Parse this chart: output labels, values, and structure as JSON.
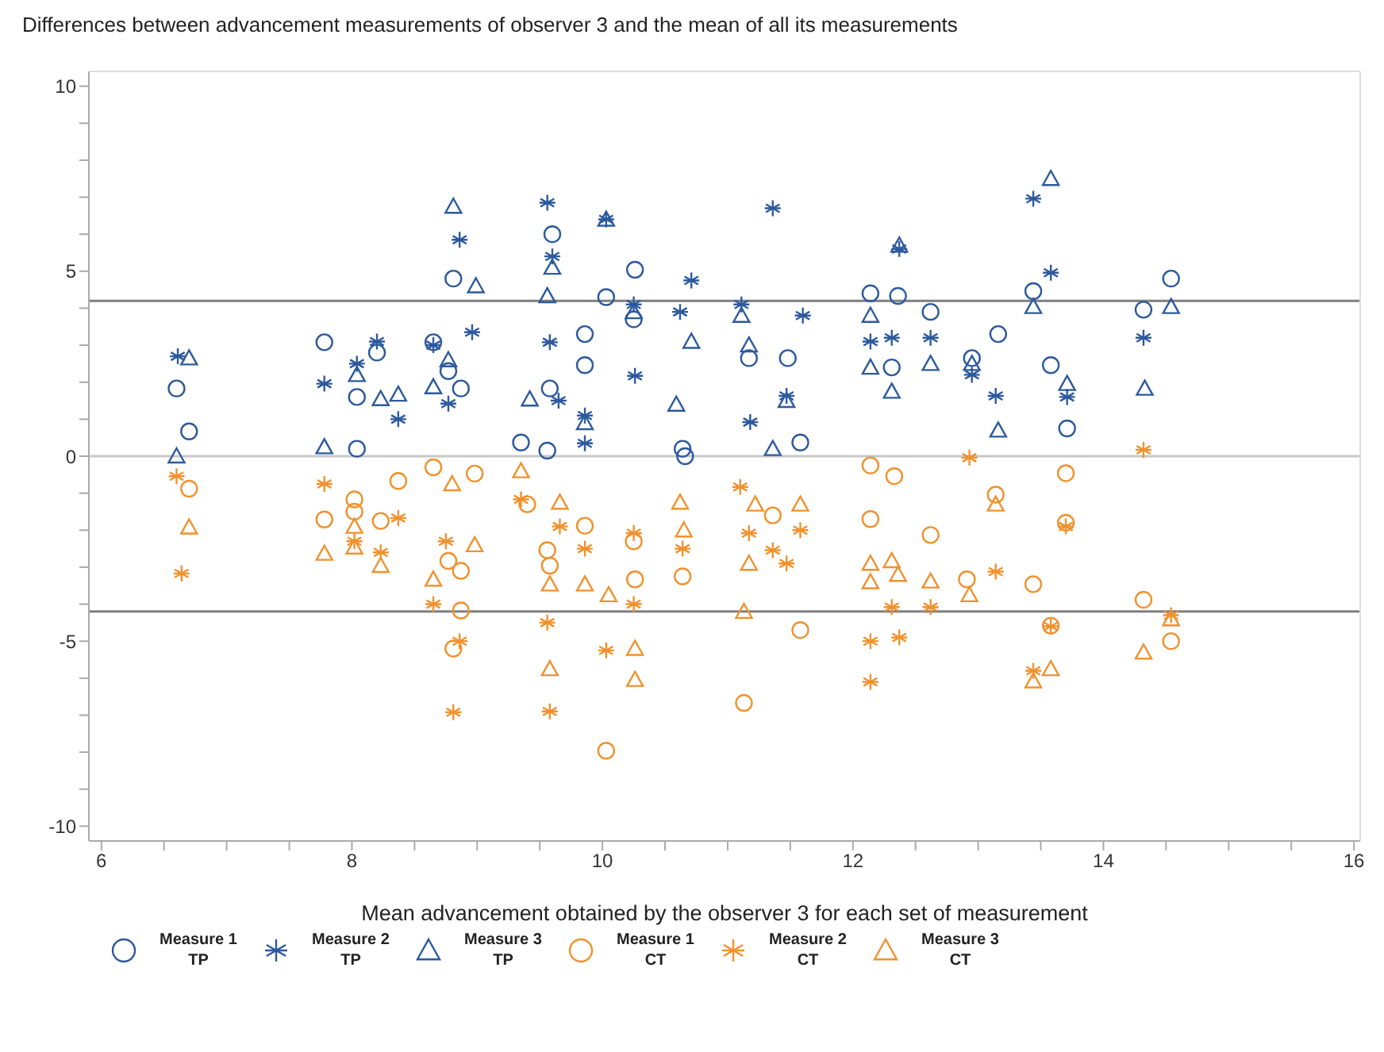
{
  "chart_data": {
    "type": "scatter",
    "title": "Differences between advancement measurements of observer 3 and the mean of all its measurements",
    "xlabel": "Mean advancement obtained by the observer 3 for each set of measurement",
    "xlim": [
      5.9,
      16.05
    ],
    "ylim": [
      -10.4,
      10.4
    ],
    "xticks": [
      6,
      {
        "value": 6.5,
        "label": null
      },
      {
        "value": 7,
        "label": null
      },
      {
        "value": 7.5,
        "label": null
      },
      8,
      {
        "value": 8.5,
        "label": null
      },
      {
        "value": 9,
        "label": null
      },
      {
        "value": 9.5,
        "label": null
      },
      10,
      {
        "value": 10.5,
        "label": null
      },
      {
        "value": 11,
        "label": null
      },
      {
        "value": 11.5,
        "label": null
      },
      12,
      {
        "value": 12.5,
        "label": null
      },
      {
        "value": 13,
        "label": null
      },
      {
        "value": 13.5,
        "label": null
      },
      14,
      {
        "value": 14.5,
        "label": null
      },
      {
        "value": 15,
        "label": null
      },
      {
        "value": 15.5,
        "label": null
      },
      16
    ],
    "yticks": [
      -10,
      {
        "value": -9,
        "label": null
      },
      {
        "value": -8,
        "label": null
      },
      {
        "value": -7,
        "label": null
      },
      {
        "value": -6,
        "label": null
      },
      -5,
      {
        "value": -4,
        "label": null
      },
      {
        "value": -3,
        "label": null
      },
      {
        "value": -2,
        "label": null
      },
      {
        "value": -1,
        "label": null
      },
      0,
      {
        "value": 1,
        "label": null
      },
      {
        "value": 2,
        "label": null
      },
      {
        "value": 3,
        "label": null
      },
      {
        "value": 4,
        "label": null
      },
      5,
      {
        "value": 6,
        "label": null
      },
      {
        "value": 7,
        "label": null
      },
      {
        "value": 8,
        "label": null
      },
      {
        "value": 9,
        "label": null
      },
      10
    ],
    "grid": false,
    "legend": "bottom",
    "ref_lines": [
      {
        "axis": "y",
        "value": 4.2,
        "color": "#7f7f7f"
      },
      {
        "axis": "y",
        "value": 0,
        "color": "#c8c8c8"
      },
      {
        "axis": "y",
        "value": -4.2,
        "color": "#7f7f7f"
      }
    ],
    "series": [
      {
        "name": "Measure 1 TP",
        "color": "#2d5a9e",
        "marker": "circle",
        "x": [
          6.6,
          6.7,
          7.78,
          8.04,
          8.04,
          8.2,
          8.65,
          8.77,
          8.81,
          8.87,
          9.35,
          9.56,
          9.58,
          9.6,
          9.86,
          9.86,
          10.03,
          10.26,
          10.25,
          10.64,
          10.66,
          11.17,
          11.48,
          11.58,
          12.14,
          12.36,
          12.62,
          12.31,
          12.95,
          13.16,
          13.44,
          13.58,
          13.71,
          14.32,
          14.54
        ],
        "values": [
          1.83,
          0.67,
          3.08,
          1.6,
          0.2,
          2.8,
          3.08,
          2.3,
          4.8,
          1.83,
          0.37,
          0.15,
          1.83,
          6.0,
          3.3,
          2.46,
          4.3,
          5.04,
          3.7,
          0.2,
          0.0,
          2.65,
          2.65,
          0.37,
          4.4,
          4.33,
          3.9,
          2.4,
          2.65,
          3.3,
          4.46,
          2.46,
          0.75,
          3.96,
          4.8
        ]
      },
      {
        "name": "Measure 2 TP",
        "color": "#2d5a9e",
        "marker": "cross",
        "x": [
          6.61,
          7.78,
          8.04,
          8.2,
          8.37,
          8.65,
          8.77,
          8.86,
          8.96,
          9.56,
          9.58,
          9.6,
          9.65,
          9.86,
          9.86,
          10.03,
          10.25,
          10.26,
          10.62,
          10.71,
          11.11,
          11.18,
          11.36,
          11.47,
          11.6,
          12.14,
          12.31,
          12.37,
          12.62,
          12.95,
          13.14,
          13.44,
          13.58,
          13.71,
          14.32
        ],
        "values": [
          2.7,
          1.96,
          2.5,
          3.1,
          1.0,
          3.0,
          1.42,
          5.85,
          3.35,
          6.85,
          3.08,
          5.4,
          1.5,
          1.1,
          0.35,
          6.4,
          4.1,
          2.17,
          3.9,
          4.75,
          4.1,
          0.92,
          6.7,
          1.63,
          3.8,
          3.1,
          3.2,
          5.6,
          3.2,
          2.2,
          1.63,
          6.96,
          4.96,
          1.6,
          3.2
        ]
      },
      {
        "name": "Measure 3 TP",
        "color": "#2d5a9e",
        "marker": "triangle",
        "x": [
          6.6,
          6.7,
          7.78,
          8.04,
          8.23,
          8.37,
          8.65,
          8.77,
          8.81,
          8.99,
          9.42,
          9.56,
          9.6,
          9.86,
          10.03,
          10.25,
          10.59,
          10.71,
          11.11,
          11.17,
          11.36,
          11.47,
          12.14,
          12.14,
          12.31,
          12.37,
          12.62,
          12.95,
          13.16,
          13.44,
          13.58,
          13.71,
          14.33,
          14.54
        ],
        "values": [
          0.0,
          2.65,
          0.25,
          2.2,
          1.55,
          1.67,
          1.87,
          2.6,
          6.75,
          4.6,
          1.54,
          4.33,
          5.1,
          0.9,
          6.4,
          3.9,
          1.4,
          3.1,
          3.8,
          3.0,
          0.2,
          1.5,
          3.8,
          2.4,
          1.75,
          5.7,
          2.5,
          2.5,
          0.7,
          4.04,
          7.5,
          1.96,
          1.83,
          4.04
        ]
      },
      {
        "name": "Measure 1 CT",
        "color": "#f0922e",
        "marker": "circle",
        "x": [
          6.7,
          7.78,
          8.02,
          8.02,
          8.23,
          8.37,
          8.65,
          8.98,
          8.77,
          8.87,
          8.87,
          8.81,
          9.4,
          9.56,
          9.58,
          9.86,
          10.03,
          10.25,
          10.26,
          10.64,
          11.13,
          11.36,
          11.58,
          12.14,
          12.33,
          12.14,
          12.62,
          12.91,
          13.14,
          13.44,
          13.7,
          13.7,
          13.58,
          14.32,
          14.54
        ],
        "values": [
          -0.88,
          -1.71,
          -1.17,
          -1.5,
          -1.75,
          -0.67,
          -0.3,
          -0.47,
          -2.83,
          -3.1,
          -4.17,
          -5.2,
          -1.3,
          -2.54,
          -2.96,
          -1.88,
          -7.96,
          -2.3,
          -3.33,
          -3.25,
          -6.67,
          -1.6,
          -4.7,
          -0.25,
          -0.54,
          -1.7,
          -2.13,
          -3.33,
          -1.04,
          -3.46,
          -0.46,
          -1.8,
          -4.58,
          -3.88,
          -5.0
        ]
      },
      {
        "name": "Measure 2 CT",
        "color": "#f0922e",
        "marker": "cross",
        "x": [
          6.6,
          6.64,
          7.78,
          8.02,
          8.23,
          8.37,
          8.75,
          8.65,
          8.86,
          8.81,
          9.35,
          9.66,
          9.86,
          9.56,
          9.58,
          10.03,
          10.25,
          10.25,
          10.64,
          11.1,
          11.17,
          11.36,
          11.47,
          11.58,
          12.31,
          12.14,
          12.37,
          12.14,
          12.62,
          12.93,
          13.14,
          13.44,
          13.7,
          13.58,
          14.32,
          14.54
        ],
        "values": [
          -0.54,
          -3.17,
          -0.75,
          -2.3,
          -2.6,
          -1.67,
          -2.3,
          -4.0,
          -5.0,
          -6.92,
          -1.17,
          -1.9,
          -2.5,
          -4.5,
          -6.9,
          -5.25,
          -2.08,
          -4.0,
          -2.5,
          -0.83,
          -2.08,
          -2.54,
          -2.9,
          -2.0,
          -4.08,
          -5.0,
          -4.9,
          -6.1,
          -4.08,
          -0.04,
          -3.12,
          -5.8,
          -1.9,
          -4.6,
          0.17,
          -4.3
        ]
      },
      {
        "name": "Measure 3 CT",
        "color": "#f0922e",
        "marker": "triangle",
        "x": [
          6.7,
          7.78,
          8.02,
          8.02,
          8.23,
          8.8,
          8.98,
          8.65,
          9.35,
          9.66,
          9.58,
          9.58,
          9.86,
          10.05,
          10.26,
          10.26,
          10.62,
          10.65,
          11.22,
          11.17,
          11.13,
          11.58,
          12.14,
          12.14,
          12.31,
          12.36,
          12.62,
          12.93,
          13.14,
          13.58,
          13.44,
          14.32,
          14.54
        ],
        "values": [
          -1.92,
          -2.63,
          -1.9,
          -2.46,
          -2.96,
          -0.75,
          -2.4,
          -3.33,
          -0.4,
          -1.25,
          -3.46,
          -5.75,
          -3.46,
          -3.75,
          -5.2,
          -6.04,
          -1.25,
          -2.0,
          -1.3,
          -2.9,
          -4.2,
          -1.3,
          -2.9,
          -3.4,
          -2.83,
          -3.2,
          -3.38,
          -3.75,
          -1.3,
          -5.75,
          -6.08,
          -5.3,
          -4.4
        ]
      }
    ]
  }
}
